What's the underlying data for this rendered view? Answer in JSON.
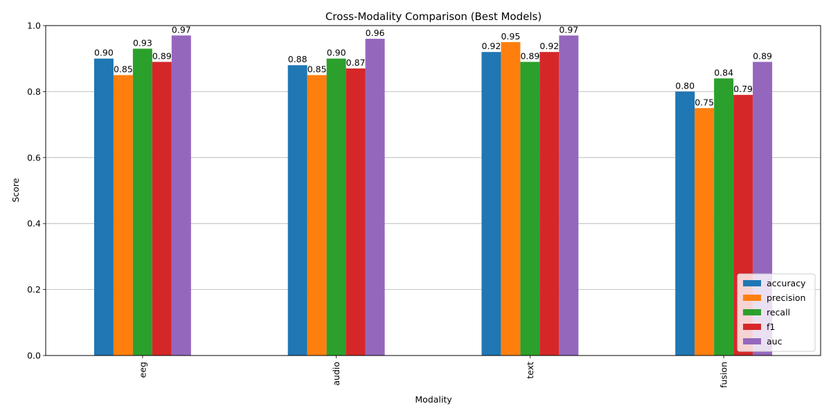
{
  "chart_data": {
    "type": "bar",
    "title": "Cross-Modality Comparison (Best Models)",
    "xlabel": "Modality",
    "ylabel": "Score",
    "ylim": [
      0,
      1.0
    ],
    "yticks": [
      "0.0",
      "0.2",
      "0.4",
      "0.6",
      "0.8",
      "1.0"
    ],
    "grid": "horizontal",
    "legend_position": "lower-right",
    "categories": [
      "eeg",
      "audio",
      "text",
      "fusion"
    ],
    "series": [
      {
        "name": "accuracy",
        "color": "#1f77b4",
        "values": [
          0.9,
          0.88,
          0.92,
          0.8
        ],
        "labels": [
          "0.90",
          "0.88",
          "0.92",
          "0.80"
        ]
      },
      {
        "name": "precision",
        "color": "#ff7f0e",
        "values": [
          0.85,
          0.85,
          0.95,
          0.75
        ],
        "labels": [
          "0.85",
          "0.85",
          "0.95",
          "0.75"
        ]
      },
      {
        "name": "recall",
        "color": "#2ca02c",
        "values": [
          0.93,
          0.9,
          0.89,
          0.84
        ],
        "labels": [
          "0.93",
          "0.90",
          "0.89",
          "0.84"
        ]
      },
      {
        "name": "f1",
        "color": "#d62728",
        "values": [
          0.89,
          0.87,
          0.92,
          0.79
        ],
        "labels": [
          "0.89",
          "0.87",
          "0.92",
          "0.79"
        ]
      },
      {
        "name": "auc",
        "color": "#9467bd",
        "values": [
          0.97,
          0.96,
          0.97,
          0.89
        ],
        "labels": [
          "0.97",
          "0.96",
          "0.97",
          "0.89"
        ]
      }
    ]
  }
}
